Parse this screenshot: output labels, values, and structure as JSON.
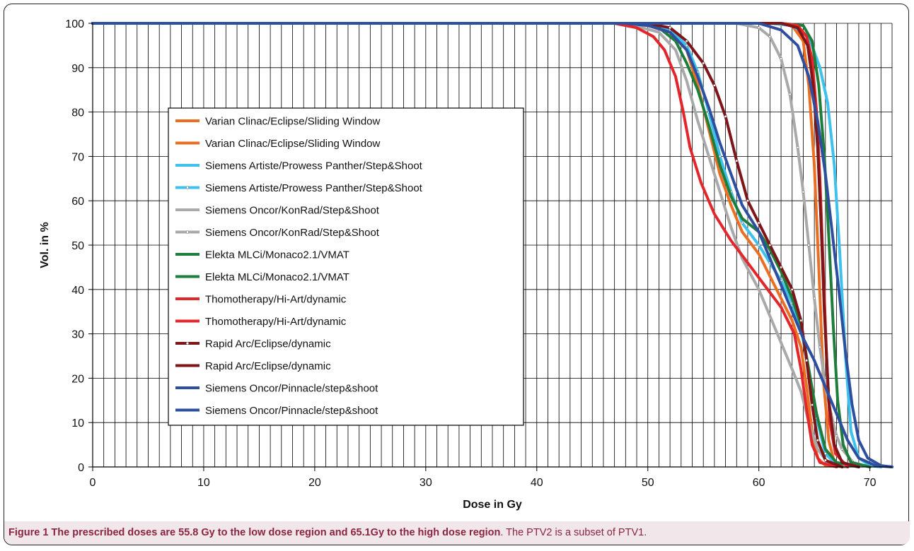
{
  "figure": {
    "caption_bold": "Figure 1 The prescribed doses are 55.8 Gy to the low dose region and 65.1Gy to the high dose region",
    "caption_rest": ". The PTV2 is a subset of PTV1."
  },
  "chart_data": {
    "type": "line",
    "xlabel": "Dose in Gy",
    "ylabel": "Vol. in %",
    "xlim": [
      0,
      72
    ],
    "ylim": [
      0,
      100
    ],
    "x_ticks": [
      0,
      10,
      20,
      30,
      40,
      50,
      60,
      70
    ],
    "y_ticks": [
      0,
      10,
      20,
      30,
      40,
      50,
      60,
      70,
      80,
      90,
      100
    ],
    "x_minor_step": 1,
    "grid": true,
    "legend_position": "center-left",
    "series": [
      {
        "name": "Varian Clinac/Eclipse/Sliding Window",
        "color": "#ea6f23",
        "marker": false,
        "points": [
          [
            0,
            100
          ],
          [
            48,
            100
          ],
          [
            50,
            99.5
          ],
          [
            52,
            98
          ],
          [
            53.5,
            94
          ],
          [
            54.5,
            86
          ],
          [
            55.5,
            76
          ],
          [
            56.5,
            66
          ],
          [
            57.5,
            59
          ],
          [
            58.5,
            53
          ],
          [
            60,
            48
          ],
          [
            61,
            43
          ],
          [
            62,
            38
          ],
          [
            63,
            33
          ],
          [
            63.8,
            27
          ],
          [
            64.3,
            18
          ],
          [
            64.8,
            8
          ],
          [
            65.3,
            2
          ],
          [
            66,
            0.3
          ],
          [
            68,
            0
          ]
        ]
      },
      {
        "name": "Varian Clinac/Eclipse/Sliding Window",
        "color": "#ea6f23",
        "marker": false,
        "points": [
          [
            0,
            100
          ],
          [
            61,
            100
          ],
          [
            63,
            99.5
          ],
          [
            64,
            96
          ],
          [
            64.5,
            86
          ],
          [
            65,
            68
          ],
          [
            65.4,
            45
          ],
          [
            65.8,
            20
          ],
          [
            66.3,
            6
          ],
          [
            66.8,
            1
          ],
          [
            68,
            0
          ]
        ]
      },
      {
        "name": "Siemens Artiste/Prowess Panther/Step&Shoot",
        "color": "#3ec1ec",
        "marker": false,
        "points": [
          [
            0,
            100
          ],
          [
            61,
            100
          ],
          [
            63,
            99.5
          ],
          [
            64.5,
            97
          ],
          [
            65.5,
            90
          ],
          [
            66.2,
            82
          ],
          [
            66.8,
            68
          ],
          [
            67.3,
            48
          ],
          [
            67.8,
            25
          ],
          [
            68.3,
            8
          ],
          [
            69,
            2
          ],
          [
            70,
            0.3
          ],
          [
            71,
            0
          ]
        ]
      },
      {
        "name": "Siemens Artiste/Prowess Panther/Step&Shoot",
        "color": "#3ec1ec",
        "marker": true,
        "points": [
          [
            0,
            100
          ],
          [
            50,
            100
          ],
          [
            52,
            98.5
          ],
          [
            53.5,
            95
          ],
          [
            54.5,
            89
          ],
          [
            55.5,
            80
          ],
          [
            56.5,
            70
          ],
          [
            57.5,
            62
          ],
          [
            58.5,
            55
          ],
          [
            60,
            50
          ],
          [
            61,
            46
          ],
          [
            62,
            42
          ],
          [
            63,
            37
          ],
          [
            63.8,
            31
          ],
          [
            64.5,
            22
          ],
          [
            65.2,
            11
          ],
          [
            66,
            3
          ],
          [
            67,
            0.5
          ],
          [
            68,
            0
          ]
        ]
      },
      {
        "name": "Siemens Oncor/KonRad/Step&Shoot",
        "color": "#a9a9a9",
        "marker": false,
        "points": [
          [
            0,
            100
          ],
          [
            48,
            100
          ],
          [
            51,
            98
          ],
          [
            52.5,
            94
          ],
          [
            53.5,
            87
          ],
          [
            54.5,
            78
          ],
          [
            55.5,
            70
          ],
          [
            56.5,
            62
          ],
          [
            57.5,
            54
          ],
          [
            58.5,
            47
          ],
          [
            60,
            40
          ],
          [
            61,
            34
          ],
          [
            62,
            28
          ],
          [
            63,
            22
          ],
          [
            63.8,
            17
          ],
          [
            64.5,
            10
          ],
          [
            65.3,
            4
          ],
          [
            66.2,
            1
          ],
          [
            68,
            0
          ]
        ]
      },
      {
        "name": "Siemens Oncor/KonRad/Step&Shoot",
        "color": "#a9a9a9",
        "marker": true,
        "points": [
          [
            0,
            100
          ],
          [
            58,
            100
          ],
          [
            60,
            99
          ],
          [
            61,
            97
          ],
          [
            62,
            92
          ],
          [
            62.8,
            84
          ],
          [
            63.5,
            72
          ],
          [
            64,
            62
          ],
          [
            64.5,
            50
          ],
          [
            65,
            38
          ],
          [
            65.5,
            27
          ],
          [
            66,
            18
          ],
          [
            66.5,
            12
          ],
          [
            67,
            7
          ],
          [
            67.5,
            4
          ],
          [
            68.5,
            1
          ],
          [
            70,
            0
          ]
        ]
      },
      {
        "name": "Elekta MLCi/Monaco2.1/VMAT",
        "color": "#1f7d3c",
        "marker": false,
        "points": [
          [
            0,
            100
          ],
          [
            49,
            100
          ],
          [
            51,
            99
          ],
          [
            52.5,
            96
          ],
          [
            53.5,
            91
          ],
          [
            54.5,
            85
          ],
          [
            55.5,
            77
          ],
          [
            56.5,
            68
          ],
          [
            57.5,
            61
          ],
          [
            58.5,
            56
          ],
          [
            60,
            53
          ],
          [
            61,
            49
          ],
          [
            62,
            44
          ],
          [
            63,
            38
          ],
          [
            63.8,
            32
          ],
          [
            64.5,
            22
          ],
          [
            65.2,
            12
          ],
          [
            66,
            4
          ],
          [
            67,
            1
          ],
          [
            69,
            0
          ]
        ]
      },
      {
        "name": "Elekta MLCi/Monaco2.1/VMAT",
        "color": "#1f7d3c",
        "marker": false,
        "points": [
          [
            0,
            100
          ],
          [
            62,
            100
          ],
          [
            64,
            99.5
          ],
          [
            64.8,
            96
          ],
          [
            65.4,
            86
          ],
          [
            65.9,
            70
          ],
          [
            66.3,
            52
          ],
          [
            66.7,
            32
          ],
          [
            67.1,
            15
          ],
          [
            67.6,
            5
          ],
          [
            68.3,
            1
          ],
          [
            70,
            0
          ]
        ]
      },
      {
        "name": "Thomotherapy/Hi-Art/dynamic",
        "color": "#e3262b",
        "marker": false,
        "points": [
          [
            0,
            100
          ],
          [
            47,
            100
          ],
          [
            49,
            99
          ],
          [
            50.5,
            97
          ],
          [
            51.5,
            94
          ],
          [
            52.5,
            88
          ],
          [
            53.2,
            80
          ],
          [
            53.8,
            72
          ],
          [
            54.8,
            64
          ],
          [
            56,
            57
          ],
          [
            57.5,
            51
          ],
          [
            59,
            46
          ],
          [
            60.5,
            41
          ],
          [
            62,
            36
          ],
          [
            63.2,
            30
          ],
          [
            63.8,
            22
          ],
          [
            64.3,
            13
          ],
          [
            64.8,
            5
          ],
          [
            65.5,
            1
          ],
          [
            67,
            0
          ]
        ]
      },
      {
        "name": "Thomotherapy/Hi-Art/dynamic",
        "color": "#e3262b",
        "marker": false,
        "points": [
          [
            0,
            100
          ],
          [
            62,
            100
          ],
          [
            63.5,
            99.5
          ],
          [
            64.3,
            97
          ],
          [
            64.8,
            92
          ],
          [
            65.2,
            80
          ],
          [
            65.5,
            65
          ],
          [
            65.8,
            45
          ],
          [
            66.1,
            25
          ],
          [
            66.4,
            10
          ],
          [
            66.9,
            3
          ],
          [
            68,
            0
          ]
        ]
      },
      {
        "name": "Rapid Arc/Eclipse/dynamic",
        "color": "#7d1519",
        "marker": true,
        "points": [
          [
            0,
            100
          ],
          [
            50,
            100
          ],
          [
            52,
            99
          ],
          [
            53.5,
            96
          ],
          [
            55,
            91
          ],
          [
            56,
            86
          ],
          [
            57,
            79
          ],
          [
            58,
            69
          ],
          [
            59,
            60
          ],
          [
            60,
            55
          ],
          [
            61,
            50
          ],
          [
            62,
            45
          ],
          [
            63,
            40
          ],
          [
            63.8,
            33
          ],
          [
            64.3,
            24
          ],
          [
            64.8,
            14
          ],
          [
            65.3,
            6
          ],
          [
            66,
            1.5
          ],
          [
            67.5,
            0
          ]
        ]
      },
      {
        "name": "Rapid Arc/Eclipse/dynamic",
        "color": "#7d1519",
        "marker": false,
        "points": [
          [
            0,
            100
          ],
          [
            62,
            100
          ],
          [
            63.5,
            99
          ],
          [
            64.4,
            95
          ],
          [
            64.9,
            86
          ],
          [
            65.3,
            72
          ],
          [
            65.6,
            55
          ],
          [
            65.9,
            35
          ],
          [
            66.3,
            15
          ],
          [
            66.8,
            5
          ],
          [
            67.5,
            1
          ],
          [
            69,
            0
          ]
        ]
      },
      {
        "name": "Siemens Oncor/Pinnacle/step&shoot",
        "color": "#2e4fa0",
        "marker": false,
        "points": [
          [
            0,
            100
          ],
          [
            48,
            100
          ],
          [
            50,
            99.5
          ],
          [
            52,
            98
          ],
          [
            53.5,
            94
          ],
          [
            54.5,
            88
          ],
          [
            55.5,
            81
          ],
          [
            56.5,
            73
          ],
          [
            57.5,
            66
          ],
          [
            58.5,
            59
          ],
          [
            60,
            53
          ],
          [
            61,
            47
          ],
          [
            62,
            41
          ],
          [
            63,
            35
          ],
          [
            64,
            29
          ],
          [
            65,
            24
          ],
          [
            66,
            18
          ],
          [
            67,
            12
          ],
          [
            68,
            6
          ],
          [
            69,
            2
          ],
          [
            70.5,
            0.3
          ],
          [
            72,
            0
          ]
        ]
      },
      {
        "name": "Siemens Oncor/Pinnacle/step&shoot",
        "color": "#2e4fa0",
        "marker": false,
        "points": [
          [
            0,
            100
          ],
          [
            60,
            100
          ],
          [
            62,
            98.5
          ],
          [
            63.5,
            95
          ],
          [
            64.5,
            88
          ],
          [
            65.3,
            78
          ],
          [
            66,
            66
          ],
          [
            66.6,
            53
          ],
          [
            67.2,
            40
          ],
          [
            67.8,
            26
          ],
          [
            68.4,
            14
          ],
          [
            69,
            6
          ],
          [
            69.8,
            2
          ],
          [
            71,
            0.3
          ],
          [
            72,
            0
          ]
        ]
      }
    ]
  }
}
